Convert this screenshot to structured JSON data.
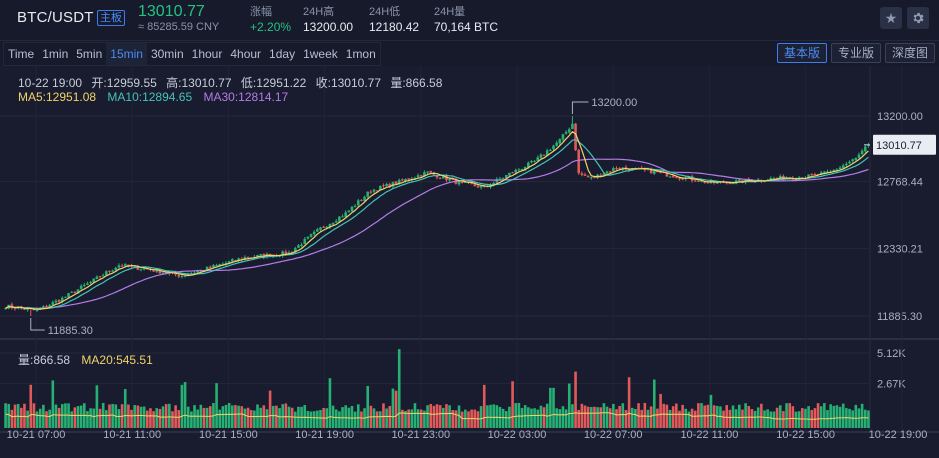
{
  "header": {
    "pair": "BTC/USDT",
    "badge": "主板",
    "last_price": "13010.77",
    "cny_price": "≈ 85285.59 CNY",
    "stats": [
      {
        "label": "涨幅",
        "value": "+2.20%"
      },
      {
        "label": "24H高",
        "value": "13200.00"
      },
      {
        "label": "24H低",
        "value": "12180.42"
      },
      {
        "label": "24H量",
        "value": "70,164 BTC"
      }
    ],
    "star_icon": "star-icon",
    "settings_icon": "gear-icon"
  },
  "toolbar": {
    "intervals": [
      "Time",
      "1min",
      "5min",
      "15min",
      "30min",
      "1hour",
      "4hour",
      "1day",
      "1week",
      "1mon"
    ],
    "active_interval": "15min",
    "views": [
      "基本版",
      "专业版",
      "深度图"
    ],
    "active_view": "基本版"
  },
  "legend": {
    "ohlc": {
      "time": "10-22 19:00",
      "open": "开:12959.55",
      "high": "高:13010.77",
      "low": "低:12951.22",
      "close": "收:13010.77",
      "volume": "量:866.58"
    },
    "ma5": "MA5:12951.08",
    "ma10": "MA10:12894.65",
    "ma30": "MA30:12814.17",
    "vol": "量:866.58",
    "ma20": "MA20:545.51"
  },
  "colors": {
    "up": "#26b073",
    "down": "#e05a5a",
    "ma5": "#f0d36b",
    "ma10": "#45c2b9",
    "ma30": "#b57be8",
    "background": "#181c2e",
    "accent": "#4c8bf5"
  },
  "chart_data": {
    "type": "candlestick",
    "y_axis_labels": [
      "13200.00",
      "12768.44",
      "12330.21",
      "11885.30"
    ],
    "y_ticks": [
      13200.0,
      12768.44,
      12330.21,
      11885.3
    ],
    "current_price_label": "13010.77",
    "current_price": 13010.77,
    "high_marker": {
      "label": "13200.00",
      "value": 13200.0
    },
    "low_marker": {
      "label": "11885.30",
      "value": 11885.3
    },
    "volume_axis_labels": [
      "5.12K",
      "2.67K"
    ],
    "volume_ticks": [
      5120,
      2670
    ],
    "x_labels": [
      "10-21 07:00",
      "10-21 11:00",
      "10-21 15:00",
      "10-21 19:00",
      "10-21 23:00",
      "10-22 03:00",
      "10-22 07:00",
      "10-22 11:00",
      "10-22 15:00",
      "10-22 19:00"
    ],
    "anchors": [
      [
        0,
        11950
      ],
      [
        10,
        11920
      ],
      [
        18,
        12000
      ],
      [
        28,
        12120
      ],
      [
        36,
        12220
      ],
      [
        46,
        12190
      ],
      [
        56,
        12150
      ],
      [
        66,
        12210
      ],
      [
        76,
        12270
      ],
      [
        90,
        12300
      ],
      [
        100,
        12460
      ],
      [
        108,
        12560
      ],
      [
        116,
        12710
      ],
      [
        124,
        12760
      ],
      [
        134,
        12830
      ],
      [
        144,
        12760
      ],
      [
        152,
        12730
      ],
      [
        160,
        12820
      ],
      [
        168,
        12900
      ],
      [
        176,
        13040
      ],
      [
        180,
        13150
      ],
      [
        182,
        12820
      ],
      [
        186,
        12790
      ],
      [
        194,
        12860
      ],
      [
        204,
        12840
      ],
      [
        214,
        12800
      ],
      [
        224,
        12760
      ],
      [
        234,
        12770
      ],
      [
        244,
        12790
      ],
      [
        254,
        12800
      ],
      [
        262,
        12830
      ],
      [
        270,
        12920
      ],
      [
        274,
        13010.77
      ]
    ]
  }
}
